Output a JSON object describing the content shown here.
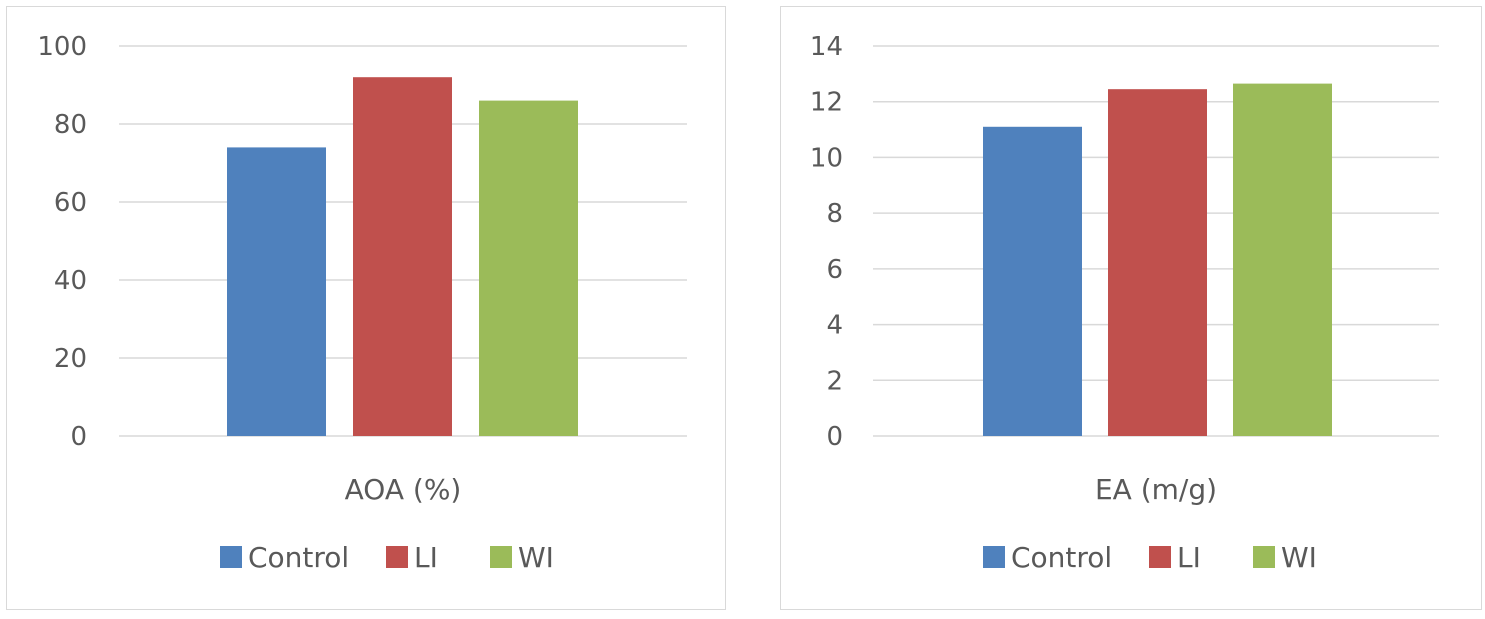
{
  "charts": [
    {
      "type": "bar",
      "categories": [
        "AOA (%)"
      ],
      "series": [
        {
          "name": "Control",
          "values": [
            74
          ],
          "color": "#4f81bd"
        },
        {
          "name": "LI",
          "values": [
            92
          ],
          "color": "#c0504d"
        },
        {
          "name": "WI",
          "values": [
            86
          ],
          "color": "#9bbb59"
        }
      ],
      "yticks": [
        "0",
        "20",
        "40",
        "60",
        "80",
        "100"
      ],
      "ylim": [
        0,
        100
      ],
      "grid": true,
      "legend_position": "bottom"
    },
    {
      "type": "bar",
      "categories": [
        "EA (m/g)"
      ],
      "series": [
        {
          "name": "Control",
          "values": [
            11.1
          ],
          "color": "#4f81bd"
        },
        {
          "name": "LI",
          "values": [
            12.45
          ],
          "color": "#c0504d"
        },
        {
          "name": "WI",
          "values": [
            12.65
          ],
          "color": "#9bbb59"
        }
      ],
      "yticks": [
        "0",
        "2",
        "4",
        "6",
        "8",
        "10",
        "12",
        "14"
      ],
      "ylim": [
        0,
        14
      ],
      "grid": true,
      "legend_position": "bottom"
    }
  ],
  "chart_data": [
    {
      "type": "bar",
      "categories": [
        "AOA (%)"
      ],
      "series": [
        {
          "name": "Control",
          "values": [
            74
          ]
        },
        {
          "name": "LI",
          "values": [
            92
          ]
        },
        {
          "name": "WI",
          "values": [
            86
          ]
        }
      ],
      "ylim": [
        0,
        100
      ]
    },
    {
      "type": "bar",
      "categories": [
        "EA (m/g)"
      ],
      "series": [
        {
          "name": "Control",
          "values": [
            11.1
          ]
        },
        {
          "name": "LI",
          "values": [
            12.45
          ]
        },
        {
          "name": "WI",
          "values": [
            12.65
          ]
        }
      ],
      "ylim": [
        0,
        14
      ]
    }
  ]
}
